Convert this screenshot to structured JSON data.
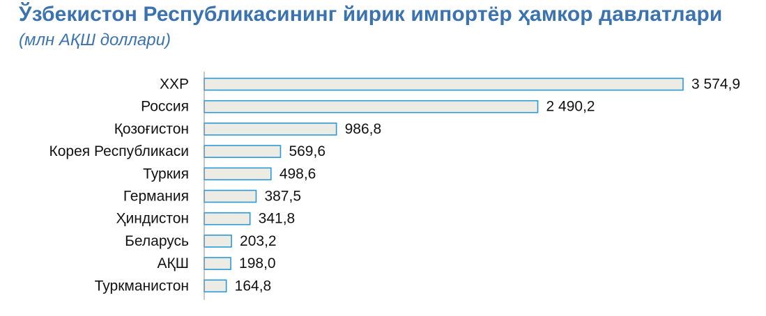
{
  "chart_data": {
    "type": "bar",
    "orientation": "horizontal",
    "title": "Ўзбекистон Республикасининг йирик импортёр ҳамкор давлатлари",
    "subtitle": "(млн АҚШ доллари)",
    "categories": [
      "ХХР",
      "Россия",
      "Қозоғистон",
      "Корея Республикаси",
      "Туркия",
      "Германия",
      "Ҳиндистон",
      "Беларусь",
      "АҚШ",
      "Туркманистон"
    ],
    "values": [
      3574.9,
      2490.2,
      986.8,
      569.6,
      498.6,
      387.5,
      341.8,
      203.2,
      198.0,
      164.8
    ],
    "value_labels": [
      "3 574,9",
      "2 490,2",
      "986,8",
      "569,6",
      "498,6",
      "387,5",
      "341,8",
      "203,2",
      "198,0",
      "164,8"
    ],
    "xlim": [
      0,
      3574.9
    ],
    "grid": false,
    "legend": "none",
    "colors": {
      "title": "#3a73b0",
      "bar_fill": "#ecebe4",
      "bar_stroke": "#2a9ad6",
      "axis": "#8c8c8c",
      "text": "#111111"
    }
  }
}
